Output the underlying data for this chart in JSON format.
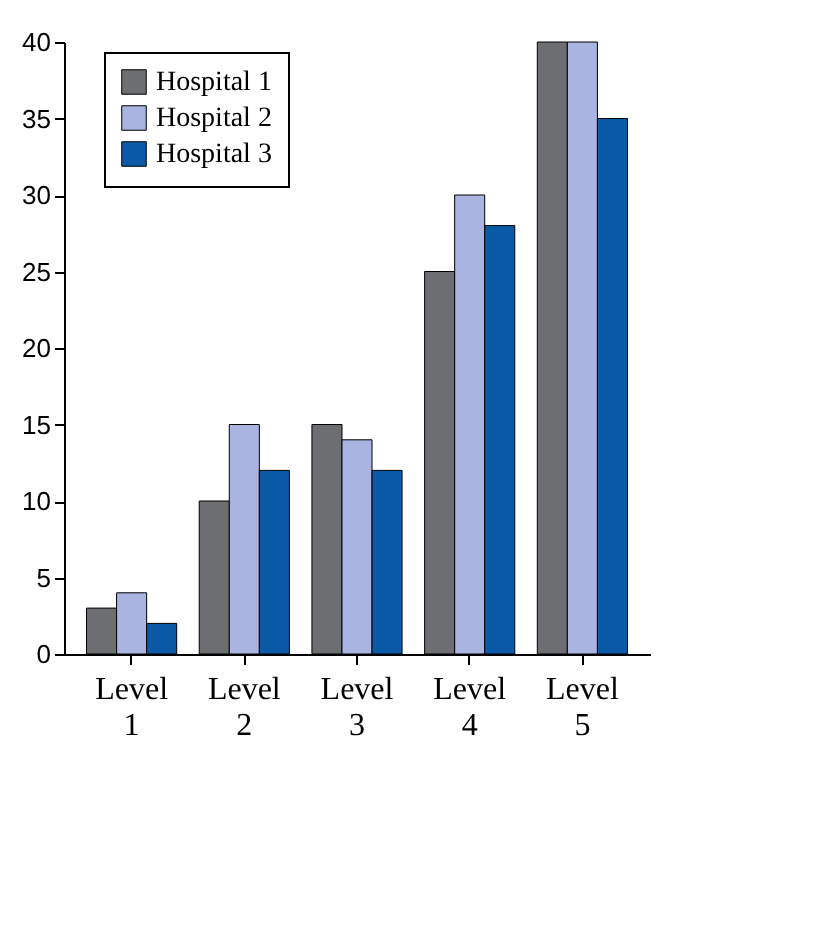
{
  "chart_data": {
    "type": "bar",
    "categories": [
      "Level 1",
      "Level 2",
      "Level 3",
      "Level 4",
      "Level 5"
    ],
    "series": [
      {
        "name": "Hospital 1",
        "color": "#6d6e71",
        "values": [
          3,
          10,
          15,
          25,
          40
        ]
      },
      {
        "name": "Hospital 2",
        "color": "#a9b4e0",
        "values": [
          4,
          15,
          14,
          30,
          40
        ]
      },
      {
        "name": "Hospital 3",
        "color": "#0b5aa7",
        "values": [
          2,
          12,
          12,
          28,
          35
        ]
      }
    ],
    "ylim": [
      0,
      40
    ],
    "yticks": [
      0,
      5,
      10,
      15,
      20,
      25,
      30,
      35,
      40
    ],
    "grid": false,
    "legend": "top left"
  }
}
